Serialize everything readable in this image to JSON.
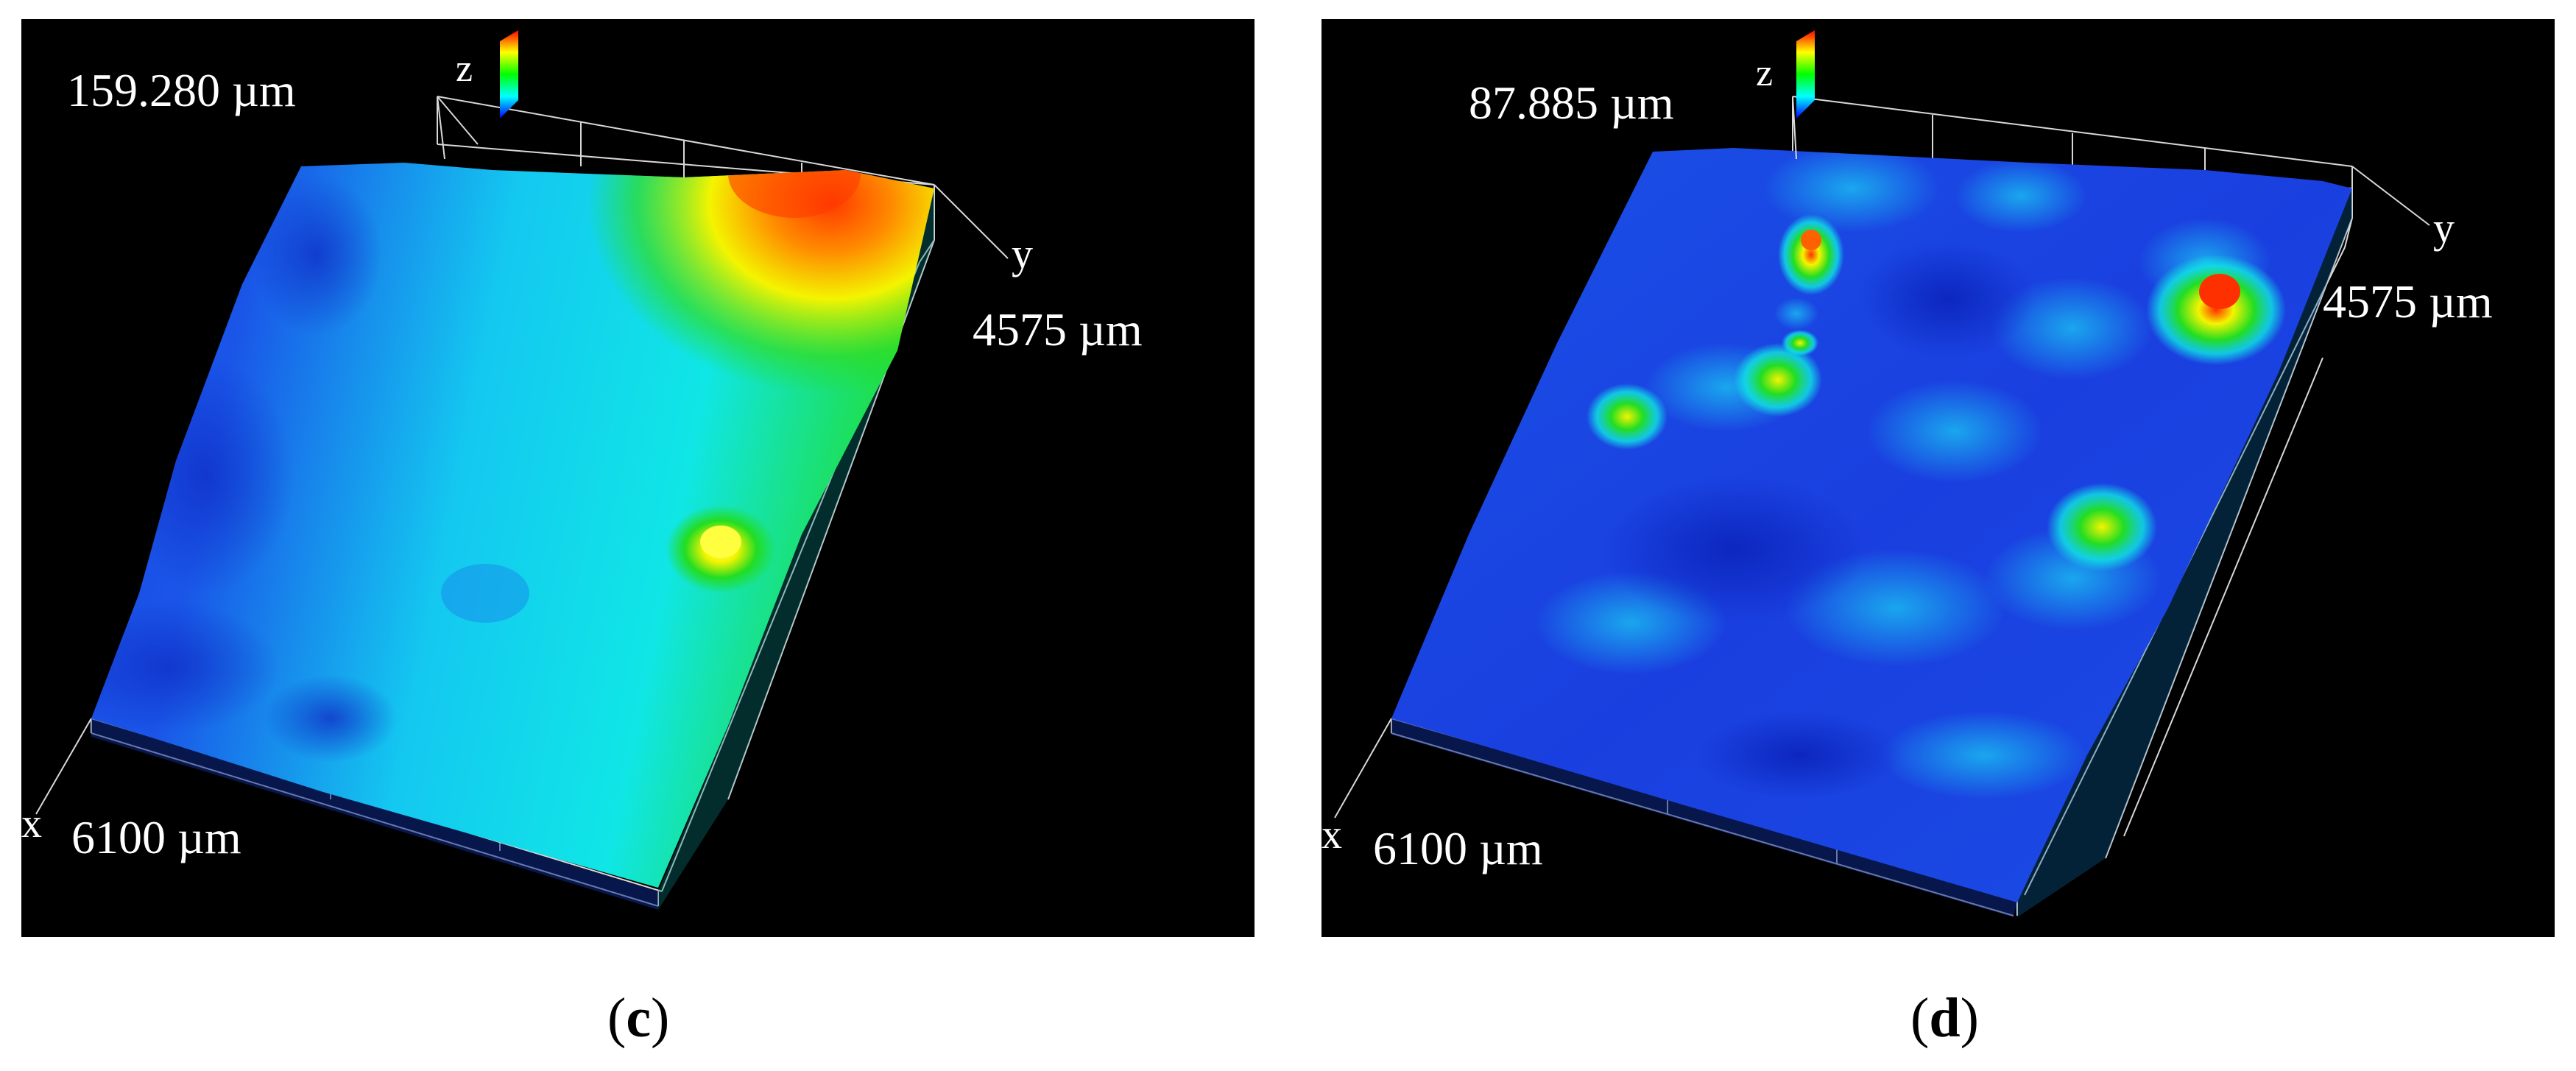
{
  "panels": [
    {
      "id": "c",
      "z_max": "159.280 µm",
      "x_length": "6100 µm",
      "y_length": "4575 µm",
      "axis_x": "x",
      "axis_y": "y",
      "axis_z": "z",
      "caption_open": "(",
      "caption_letter": "c",
      "caption_close": ")"
    },
    {
      "id": "d",
      "z_max": "87.885 µm",
      "x_length": "6100 µm",
      "y_length": "4575 µm",
      "axis_x": "x",
      "axis_y": "y",
      "axis_z": "z",
      "caption_open": "(",
      "caption_letter": "d",
      "caption_close": ")"
    }
  ],
  "colors": {
    "background": "#000000",
    "low": "#1a3fe0",
    "mid_low": "#1fa0f0",
    "mid": "#10e6e6",
    "mid_high": "#22dd22",
    "high": "#f4f400",
    "peak": "#ff3000",
    "frame": "#d8d8d8"
  }
}
